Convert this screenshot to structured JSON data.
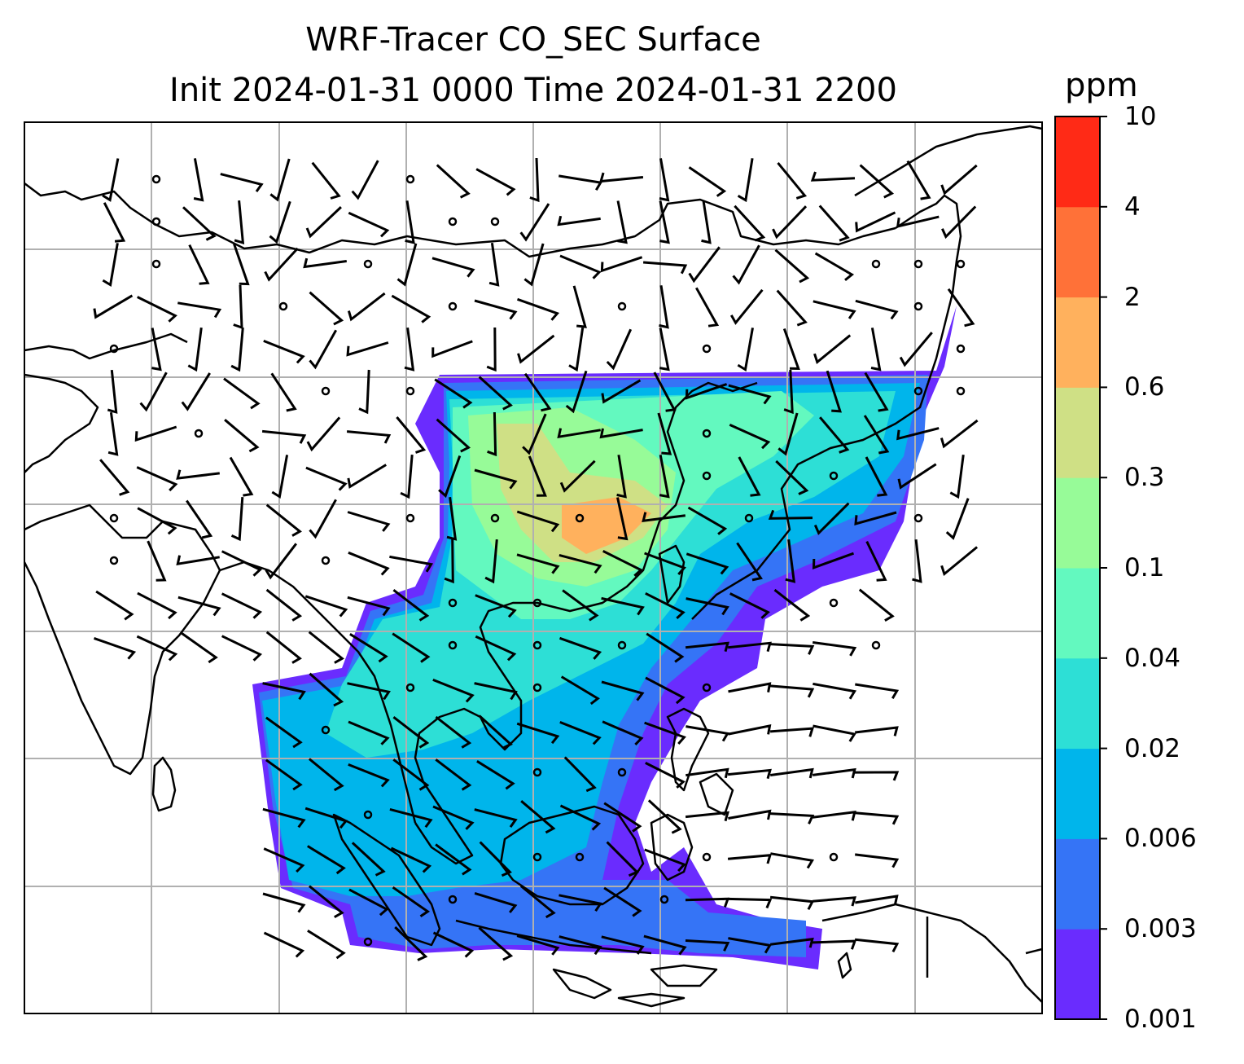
{
  "title_line1": "WRF-Tracer CO_SEC Surface",
  "title_line2": "Init 2024-01-31 0000 Time 2024-01-31 2200",
  "colorbar": {
    "unit": "ppm",
    "levels": [
      "0.001",
      "0.003",
      "0.006",
      "0.02",
      "0.04",
      "0.1",
      "0.3",
      "0.6",
      "2",
      "4",
      "10"
    ],
    "colors": [
      "#6a2cfe",
      "#3574f6",
      "#00b5eb",
      "#2ddfd6",
      "#63f9bf",
      "#97fb98",
      "#cfe085",
      "#ffb15d",
      "#ff7138",
      "#ff2a16"
    ]
  },
  "map": {
    "ocean_color": "#ffffff",
    "coastline_color": "#000000",
    "gridline_color": "#b0b0b0"
  }
}
